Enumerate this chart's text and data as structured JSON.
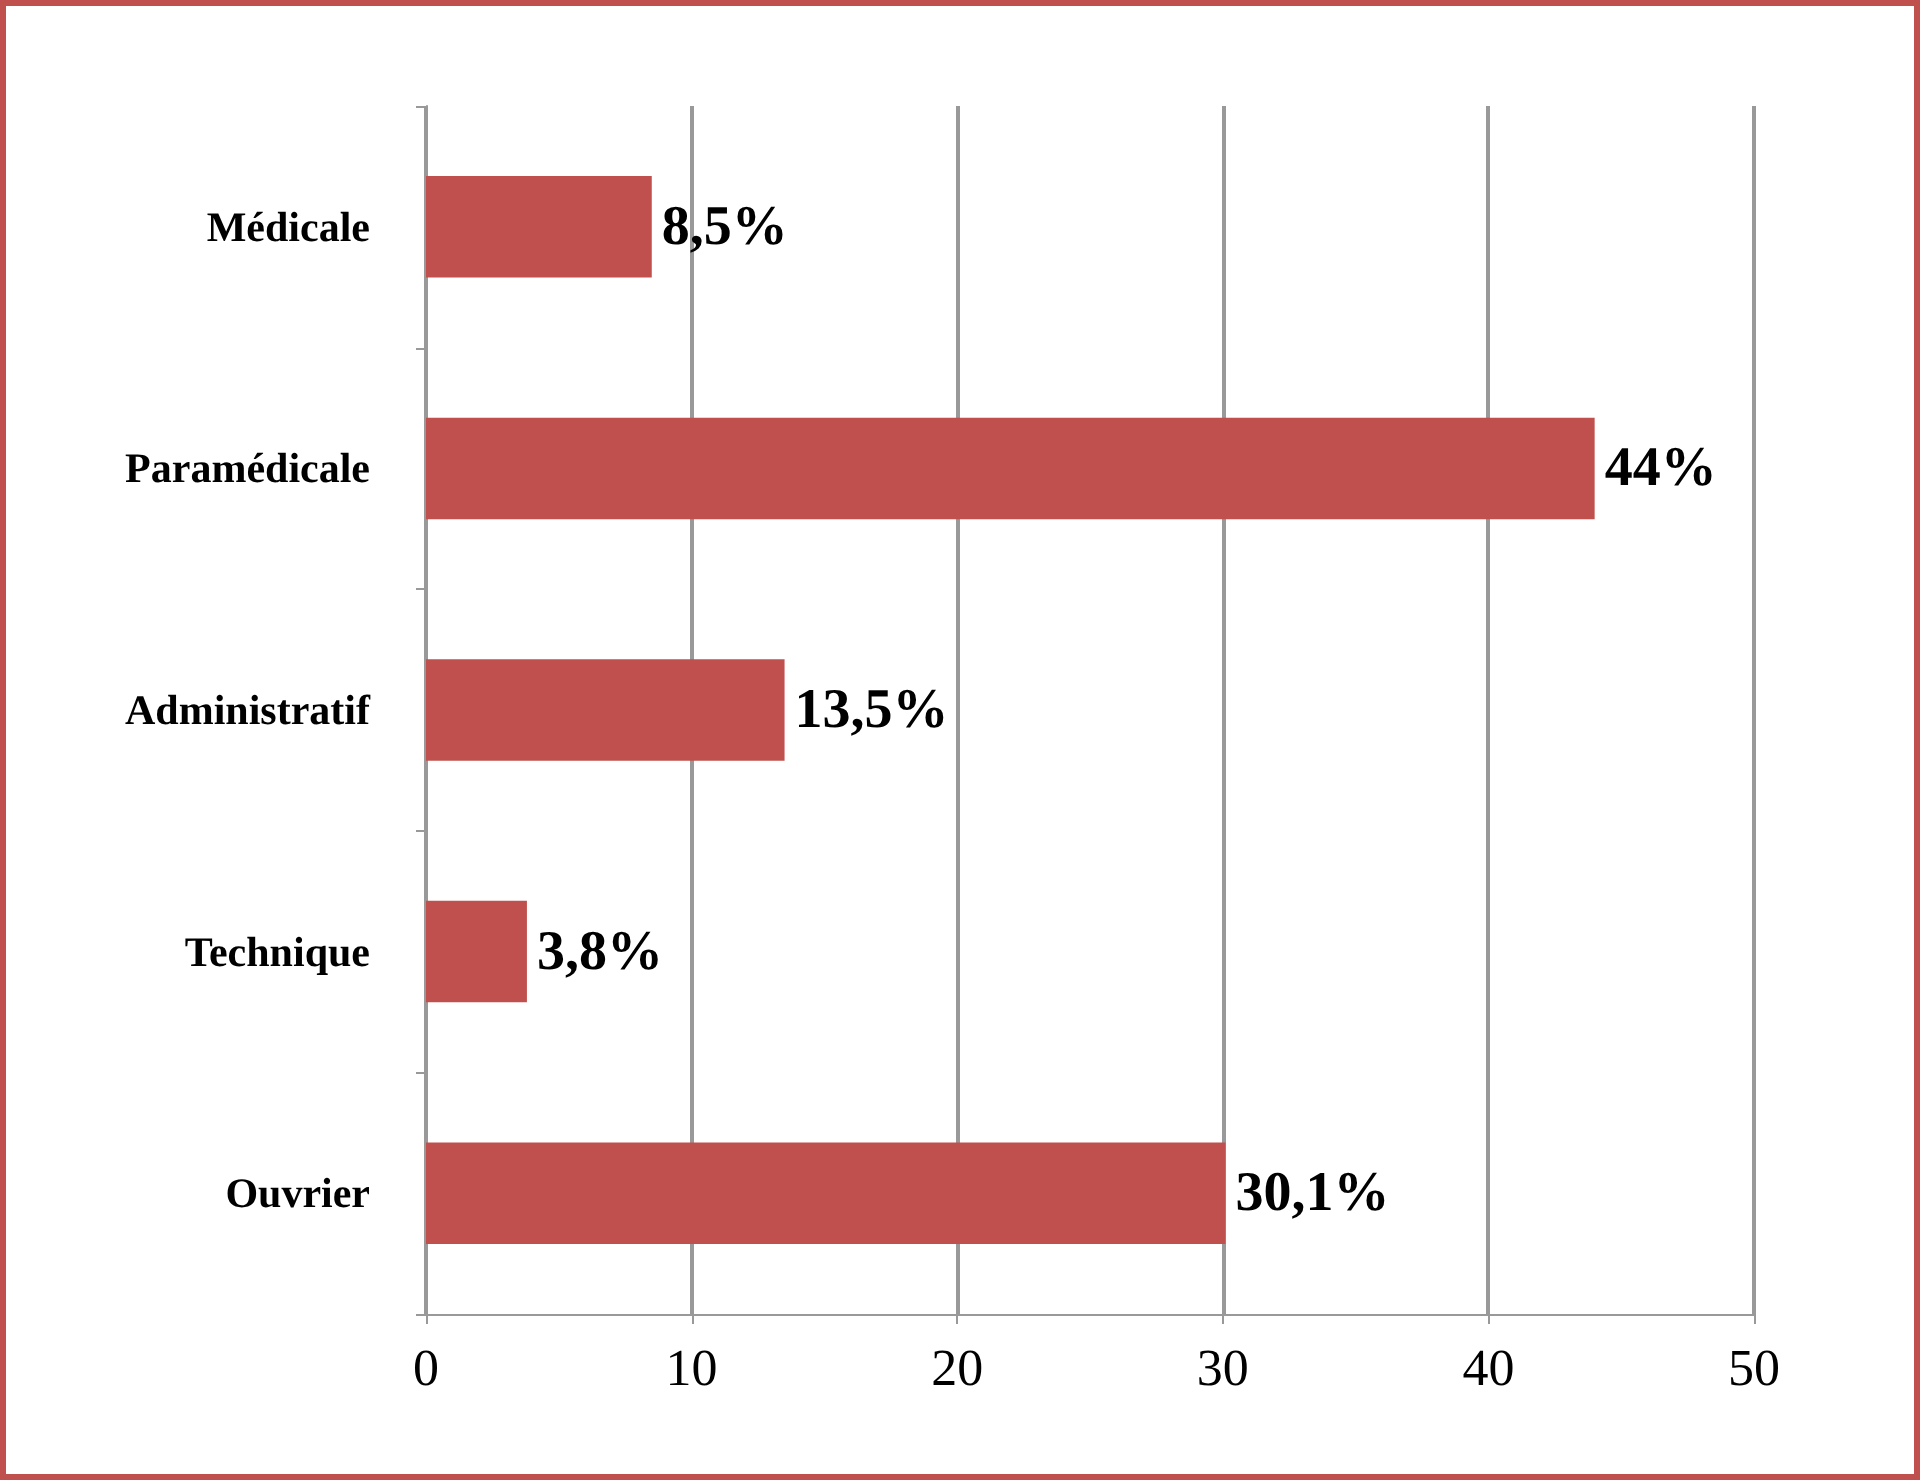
{
  "chart_data": {
    "type": "bar",
    "orientation": "horizontal",
    "categories": [
      "Médicale",
      "Paramédicale",
      "Administratif",
      "Technique",
      "Ouvrier"
    ],
    "values": [
      8.5,
      44,
      13.5,
      3.8,
      30.1
    ],
    "value_labels": [
      "8,5%",
      "44%",
      "13,5%",
      "3,8%",
      "30,1%"
    ],
    "color": "#c0504d",
    "xlim": [
      0,
      50
    ],
    "xticks": [
      0,
      10,
      20,
      30,
      40,
      50
    ],
    "grid": "x"
  }
}
